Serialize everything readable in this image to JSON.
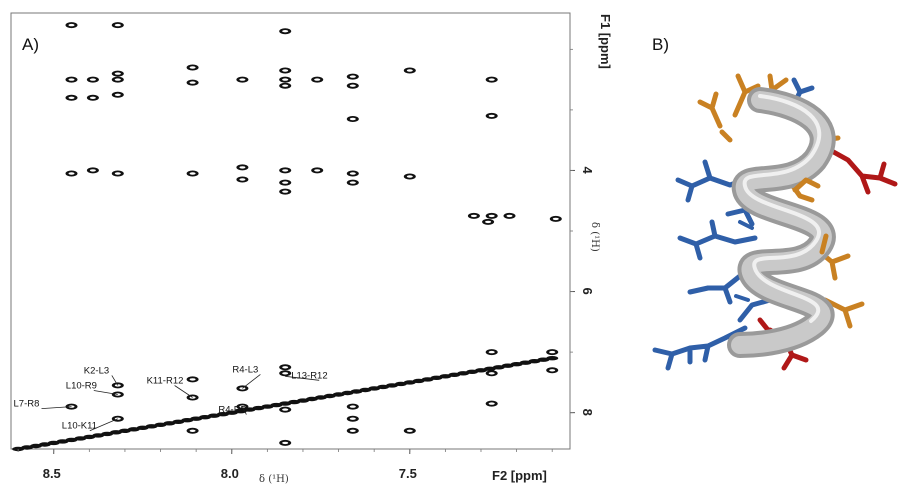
{
  "figure": {
    "panel_a_label": "A)",
    "panel_b_label": "B)"
  },
  "chart_data": {
    "type": "scatter",
    "title": "",
    "xlabel": "F2 [ppm]",
    "xlabel_symbol": "δ (¹H)",
    "ylabel": "F1 [ppm]",
    "ylabel_symbol": "δ (¹H)",
    "x_reversed": true,
    "y_reversed": true,
    "xlim": [
      8.62,
      7.05
    ],
    "ylim": [
      1.4,
      8.6
    ],
    "x_ticks": [
      8.5,
      8.0,
      7.5
    ],
    "x_tick_labels": [
      "8.5",
      "8.0",
      "7.5"
    ],
    "y_ticks": [
      4,
      6,
      8
    ],
    "y_tick_labels": [
      "4",
      "6",
      "8"
    ],
    "grid": false,
    "series": [
      {
        "points": [
          {
            "x": 8.45,
            "y": 1.6
          },
          {
            "x": 8.32,
            "y": 1.6
          },
          {
            "x": 7.85,
            "y": 1.7
          },
          {
            "x": 8.45,
            "y": 2.5
          },
          {
            "x": 8.39,
            "y": 2.5
          },
          {
            "x": 8.32,
            "y": 2.5
          },
          {
            "x": 8.32,
            "y": 2.4
          },
          {
            "x": 8.11,
            "y": 2.3
          },
          {
            "x": 8.11,
            "y": 2.55
          },
          {
            "x": 7.97,
            "y": 2.5
          },
          {
            "x": 7.85,
            "y": 2.35
          },
          {
            "x": 7.85,
            "y": 2.5
          },
          {
            "x": 7.85,
            "y": 2.6
          },
          {
            "x": 7.76,
            "y": 2.5
          },
          {
            "x": 7.66,
            "y": 2.45
          },
          {
            "x": 7.66,
            "y": 2.6
          },
          {
            "x": 7.5,
            "y": 2.35
          },
          {
            "x": 8.45,
            "y": 2.8
          },
          {
            "x": 8.39,
            "y": 2.8
          },
          {
            "x": 8.32,
            "y": 2.75
          },
          {
            "x": 7.27,
            "y": 2.5
          },
          {
            "x": 7.27,
            "y": 3.1
          },
          {
            "x": 7.66,
            "y": 3.15
          },
          {
            "x": 8.45,
            "y": 4.05
          },
          {
            "x": 8.39,
            "y": 4.0
          },
          {
            "x": 8.32,
            "y": 4.05
          },
          {
            "x": 8.11,
            "y": 4.05
          },
          {
            "x": 7.97,
            "y": 3.95
          },
          {
            "x": 7.97,
            "y": 4.15
          },
          {
            "x": 7.85,
            "y": 4.0
          },
          {
            "x": 7.85,
            "y": 4.2
          },
          {
            "x": 7.85,
            "y": 4.35
          },
          {
            "x": 7.76,
            "y": 4.0
          },
          {
            "x": 7.66,
            "y": 4.05
          },
          {
            "x": 7.66,
            "y": 4.2
          },
          {
            "x": 7.5,
            "y": 4.1
          },
          {
            "x": 7.27,
            "y": 4.75
          },
          {
            "x": 7.22,
            "y": 4.75
          },
          {
            "x": 7.32,
            "y": 4.75
          },
          {
            "x": 7.28,
            "y": 4.85
          },
          {
            "x": 7.09,
            "y": 4.8
          },
          {
            "x": 7.27,
            "y": 7.0
          },
          {
            "x": 7.1,
            "y": 7.0
          },
          {
            "x": 7.27,
            "y": 7.35
          },
          {
            "x": 7.1,
            "y": 7.3
          },
          {
            "x": 7.85,
            "y": 7.25
          },
          {
            "x": 7.85,
            "y": 7.35
          },
          {
            "x": 8.11,
            "y": 7.45
          },
          {
            "x": 7.97,
            "y": 7.6
          },
          {
            "x": 8.32,
            "y": 7.55
          },
          {
            "x": 8.32,
            "y": 7.7
          },
          {
            "x": 8.11,
            "y": 7.75
          },
          {
            "x": 8.45,
            "y": 7.9
          },
          {
            "x": 8.32,
            "y": 8.1
          },
          {
            "x": 8.11,
            "y": 8.3
          },
          {
            "x": 7.97,
            "y": 7.9
          },
          {
            "x": 7.85,
            "y": 7.95
          },
          {
            "x": 7.66,
            "y": 8.1
          },
          {
            "x": 7.66,
            "y": 8.3
          },
          {
            "x": 7.5,
            "y": 8.3
          },
          {
            "x": 7.85,
            "y": 8.5
          },
          {
            "x": 7.27,
            "y": 7.85
          },
          {
            "x": 7.66,
            "y": 7.9
          }
        ]
      }
    ],
    "diagonal": {
      "from": 8.6,
      "to": 7.1
    },
    "annotations": [
      {
        "text": "K2-L3",
        "x": 8.32,
        "y": 7.55
      },
      {
        "text": "L10-R9",
        "x": 8.32,
        "y": 7.7
      },
      {
        "text": "L7-R8",
        "x": 8.45,
        "y": 7.9
      },
      {
        "text": "L10-K11",
        "x": 8.32,
        "y": 8.1
      },
      {
        "text": "K11-R12",
        "x": 8.11,
        "y": 7.75
      },
      {
        "text": "R4-L3",
        "x": 7.97,
        "y": 7.6
      },
      {
        "text": "R4-R5",
        "x": 7.97,
        "y": 7.9
      },
      {
        "text": "L13-R12",
        "x": 7.85,
        "y": 7.4
      }
    ]
  },
  "structure": {
    "description_colors": {
      "helix": "#bcbcbc",
      "blue": "#2f5fa8",
      "orange": "#c98122",
      "red": "#b01818"
    }
  }
}
